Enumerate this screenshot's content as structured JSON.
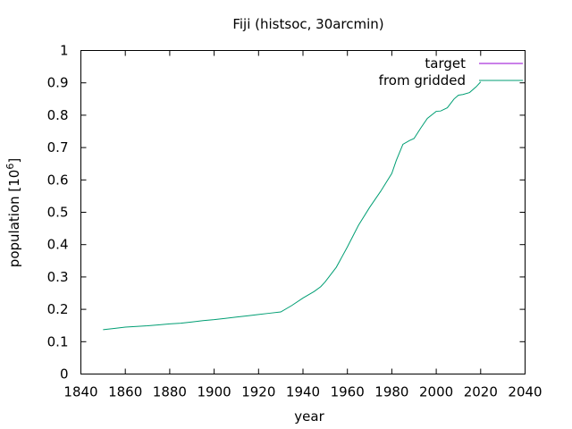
{
  "chart_data": {
    "type": "line",
    "title": "Fiji (histsoc, 30arcmin)",
    "xlabel": "year",
    "ylabel": "population [10",
    "ylabel_exp": "6",
    "ylabel_close": "]",
    "xlim": [
      1840,
      2040
    ],
    "ylim": [
      0,
      1
    ],
    "x_ticks": [
      1840,
      1860,
      1880,
      1900,
      1920,
      1940,
      1960,
      1980,
      2000,
      2020,
      2040
    ],
    "y_ticks": [
      0,
      0.1,
      0.2,
      0.3,
      0.4,
      0.5,
      0.6,
      0.7,
      0.8,
      0.9,
      1
    ],
    "y_tick_labels": [
      "0",
      "0.1",
      "0.2",
      "0.3",
      "0.4",
      "0.5",
      "0.6",
      "0.7",
      "0.8",
      "0.9",
      "1"
    ],
    "grid": false,
    "legend_position": "top-right",
    "series": [
      {
        "name": "target",
        "color": "#9400d3",
        "x": [],
        "y": []
      },
      {
        "name": "from gridded",
        "color": "#009e73",
        "x": [
          1850,
          1855,
          1860,
          1865,
          1870,
          1875,
          1880,
          1885,
          1890,
          1895,
          1900,
          1905,
          1910,
          1915,
          1920,
          1925,
          1930,
          1935,
          1940,
          1945,
          1948,
          1950,
          1955,
          1960,
          1965,
          1970,
          1972,
          1975,
          1980,
          1982,
          1985,
          1988,
          1990,
          1993,
          1996,
          2000,
          2002,
          2005,
          2008,
          2010,
          2012,
          2015,
          2018,
          2020
        ],
        "y": [
          0.137,
          0.141,
          0.145,
          0.147,
          0.149,
          0.152,
          0.155,
          0.157,
          0.161,
          0.165,
          0.168,
          0.172,
          0.176,
          0.18,
          0.184,
          0.188,
          0.192,
          0.212,
          0.235,
          0.255,
          0.27,
          0.285,
          0.33,
          0.393,
          0.46,
          0.515,
          0.535,
          0.565,
          0.62,
          0.66,
          0.71,
          0.722,
          0.728,
          0.76,
          0.79,
          0.812,
          0.813,
          0.823,
          0.85,
          0.862,
          0.864,
          0.87,
          0.888,
          0.903
        ]
      }
    ]
  }
}
